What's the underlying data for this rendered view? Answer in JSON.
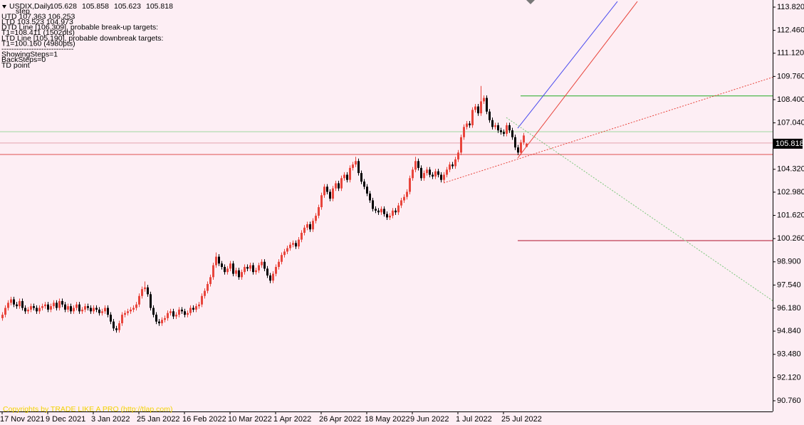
{
  "chart_data": {
    "type": "candlestick",
    "title": "USDIX,Daily",
    "info_lines": [
      "step",
      "UTD  107.363  106.253",
      "LTD  103.523  104.973",
      "DTD  Line [106.309], probable break-up targets:",
      "T1=108.411 (1502pts)",
      "LTD  Line [105.190], probable downbreak targets:",
      "T1=100.160 (4980pts)",
      "-----------------------------",
      "ShowingSteps=1",
      "BackSteps=0",
      "TD point"
    ],
    "footer": "Copyrights by TRADE LIKE A PRO (http://tlap.com)",
    "background": "#fdeef4",
    "up_color": "#e8453c",
    "down_color": "#000000",
    "categories": [
      "17 Nov 2021",
      null,
      null,
      null,
      null,
      null,
      null,
      null,
      null,
      null,
      null,
      null,
      null,
      null,
      null,
      null,
      "9 Dec 2021",
      null,
      null,
      null,
      null,
      null,
      null,
      null,
      null,
      null,
      null,
      null,
      null,
      null,
      null,
      null,
      "3 Jan 2022",
      null,
      null,
      null,
      null,
      null,
      null,
      null,
      null,
      null,
      null,
      null,
      null,
      null,
      null,
      null,
      "25 Jan 2022",
      null,
      null,
      null,
      null,
      null,
      null,
      null,
      null,
      null,
      null,
      null,
      null,
      null,
      null,
      null,
      "16 Feb 2022",
      null,
      null,
      null,
      null,
      null,
      null,
      null,
      null,
      null,
      null,
      null,
      null,
      null,
      null,
      null,
      "10 Mar 2022",
      null,
      null,
      null,
      null,
      null,
      null,
      null,
      null,
      null,
      null,
      null,
      null,
      null,
      null,
      null,
      "1 Apr 2022",
      null,
      null,
      null,
      null,
      null,
      null,
      null,
      null,
      null,
      null,
      null,
      null,
      null,
      null,
      null,
      "26 Apr 2022",
      null,
      null,
      null,
      null,
      null,
      null,
      null,
      null,
      null,
      null,
      null,
      null,
      null,
      null,
      null,
      "18 May 2022",
      null,
      null,
      null,
      null,
      null,
      null,
      null,
      null,
      null,
      null,
      null,
      null,
      null,
      null,
      null,
      "9 Jun 2022",
      null,
      null,
      null,
      null,
      null,
      null,
      null,
      null,
      null,
      null,
      null,
      null,
      null,
      null,
      null,
      "1 Jul 2022",
      null,
      null,
      null,
      null,
      null,
      null,
      null,
      null,
      null,
      null,
      null,
      null,
      null,
      null,
      null,
      "25 Jul 2022",
      null,
      null,
      null,
      null,
      null,
      null,
      null,
      null
    ],
    "candles": [
      [
        95.6,
        95.95,
        95.45,
        95.8
      ],
      [
        95.8,
        96.35,
        95.65,
        96.2
      ],
      [
        96.2,
        96.65,
        96.05,
        96.5
      ],
      [
        96.5,
        96.85,
        96.35,
        96.7
      ],
      [
        96.7,
        96.85,
        96.25,
        96.4
      ],
      [
        96.4,
        96.55,
        96.15,
        96.3
      ],
      [
        96.3,
        96.75,
        96.15,
        96.6
      ],
      [
        96.6,
        96.75,
        96.05,
        96.2
      ],
      [
        96.2,
        96.35,
        95.85,
        96.0
      ],
      [
        96.0,
        96.25,
        95.85,
        96.1
      ],
      [
        96.1,
        96.45,
        95.95,
        96.3
      ],
      [
        96.3,
        96.45,
        96.05,
        96.2
      ],
      [
        96.2,
        96.35,
        95.85,
        96.0
      ],
      [
        96.0,
        96.35,
        95.85,
        96.2
      ],
      [
        96.2,
        96.45,
        96.05,
        96.3
      ],
      [
        96.3,
        96.55,
        96.15,
        96.4
      ],
      [
        96.4,
        96.55,
        95.95,
        96.1
      ],
      [
        96.1,
        96.45,
        95.95,
        96.3
      ],
      [
        96.3,
        96.65,
        96.15,
        96.5
      ],
      [
        96.5,
        96.65,
        96.05,
        96.2
      ],
      [
        96.2,
        96.75,
        96.05,
        96.6
      ],
      [
        96.6,
        96.75,
        96.25,
        96.4
      ],
      [
        96.4,
        96.55,
        95.95,
        96.1
      ],
      [
        96.1,
        96.45,
        95.95,
        96.3
      ],
      [
        96.3,
        96.45,
        95.85,
        96.0
      ],
      [
        96.0,
        96.35,
        95.85,
        96.2
      ],
      [
        96.2,
        96.55,
        96.05,
        96.4
      ],
      [
        96.4,
        96.55,
        95.85,
        96.0
      ],
      [
        96.0,
        96.25,
        95.85,
        96.1
      ],
      [
        96.1,
        96.45,
        95.95,
        96.3
      ],
      [
        96.3,
        96.45,
        96.05,
        96.2
      ],
      [
        96.2,
        96.35,
        95.85,
        96.0
      ],
      [
        96.0,
        96.35,
        95.85,
        96.2
      ],
      [
        96.2,
        96.35,
        95.95,
        96.1
      ],
      [
        96.1,
        96.25,
        95.75,
        95.9
      ],
      [
        95.9,
        96.15,
        95.75,
        96.0
      ],
      [
        96.0,
        96.35,
        95.85,
        96.2
      ],
      [
        96.2,
        96.35,
        95.65,
        95.8
      ],
      [
        95.8,
        95.95,
        95.25,
        95.4
      ],
      [
        95.4,
        95.55,
        94.85,
        95.0
      ],
      [
        95.0,
        95.15,
        94.75,
        94.9
      ],
      [
        94.9,
        95.45,
        94.75,
        95.3
      ],
      [
        95.3,
        95.95,
        95.15,
        95.8
      ],
      [
        95.8,
        96.05,
        95.65,
        95.9
      ],
      [
        95.9,
        96.15,
        95.75,
        96.0
      ],
      [
        96.0,
        96.25,
        95.85,
        96.1
      ],
      [
        96.1,
        96.35,
        95.95,
        96.2
      ],
      [
        96.2,
        96.55,
        96.05,
        96.4
      ],
      [
        96.4,
        97.05,
        96.25,
        96.9
      ],
      [
        96.9,
        97.45,
        96.75,
        97.3
      ],
      [
        97.3,
        97.75,
        97.15,
        97.4
      ],
      [
        97.4,
        97.55,
        96.85,
        97.0
      ],
      [
        97.0,
        97.15,
        96.05,
        96.2
      ],
      [
        96.2,
        96.35,
        95.65,
        95.8
      ],
      [
        95.8,
        95.95,
        95.25,
        95.4
      ],
      [
        95.4,
        95.55,
        95.15,
        95.3
      ],
      [
        95.3,
        95.65,
        95.15,
        95.5
      ],
      [
        95.5,
        95.75,
        95.35,
        95.6
      ],
      [
        95.6,
        96.05,
        95.45,
        95.9
      ],
      [
        95.9,
        96.15,
        95.75,
        96.0
      ],
      [
        96.0,
        96.15,
        95.55,
        95.7
      ],
      [
        95.7,
        95.95,
        95.55,
        95.8
      ],
      [
        95.8,
        96.25,
        95.65,
        96.1
      ],
      [
        96.1,
        96.25,
        95.85,
        96.0
      ],
      [
        96.0,
        96.15,
        95.65,
        95.8
      ],
      [
        95.8,
        96.05,
        95.65,
        95.9
      ],
      [
        95.9,
        96.35,
        95.75,
        96.2
      ],
      [
        96.2,
        96.35,
        95.95,
        96.1
      ],
      [
        96.1,
        96.45,
        95.95,
        96.3
      ],
      [
        96.3,
        96.55,
        96.15,
        96.4
      ],
      [
        96.4,
        97.05,
        96.25,
        96.9
      ],
      [
        96.9,
        97.35,
        96.75,
        97.2
      ],
      [
        97.2,
        97.75,
        97.05,
        97.6
      ],
      [
        97.6,
        98.15,
        97.45,
        98.0
      ],
      [
        98.0,
        98.85,
        97.85,
        98.7
      ],
      [
        98.7,
        99.45,
        98.55,
        99.2
      ],
      [
        99.2,
        99.35,
        98.65,
        98.8
      ],
      [
        98.8,
        98.95,
        98.45,
        98.6
      ],
      [
        98.6,
        98.75,
        98.15,
        98.3
      ],
      [
        98.3,
        98.65,
        98.15,
        98.5
      ],
      [
        98.5,
        98.95,
        98.35,
        98.8
      ],
      [
        98.8,
        98.95,
        98.05,
        98.2
      ],
      [
        98.2,
        98.55,
        98.05,
        98.4
      ],
      [
        98.4,
        98.55,
        97.85,
        98.0
      ],
      [
        98.0,
        98.45,
        97.85,
        98.3
      ],
      [
        98.3,
        98.75,
        98.15,
        98.6
      ],
      [
        98.6,
        98.75,
        98.35,
        98.5
      ],
      [
        98.5,
        98.85,
        98.35,
        98.7
      ],
      [
        98.7,
        98.85,
        98.15,
        98.3
      ],
      [
        98.3,
        98.55,
        98.15,
        98.4
      ],
      [
        98.4,
        98.85,
        98.25,
        98.7
      ],
      [
        98.7,
        99.05,
        98.55,
        98.9
      ],
      [
        98.9,
        99.05,
        98.35,
        98.5
      ],
      [
        98.5,
        98.65,
        97.95,
        98.1
      ],
      [
        98.1,
        98.25,
        97.65,
        97.8
      ],
      [
        97.8,
        98.35,
        97.65,
        98.2
      ],
      [
        98.2,
        98.75,
        98.05,
        98.6
      ],
      [
        98.6,
        99.05,
        98.45,
        98.9
      ],
      [
        98.9,
        99.45,
        98.75,
        99.3
      ],
      [
        99.3,
        99.65,
        99.15,
        99.5
      ],
      [
        99.5,
        99.85,
        99.35,
        99.7
      ],
      [
        99.7,
        100.05,
        99.55,
        99.9
      ],
      [
        99.9,
        100.15,
        99.75,
        100.0
      ],
      [
        100.0,
        100.15,
        99.65,
        99.8
      ],
      [
        99.8,
        100.35,
        99.65,
        100.2
      ],
      [
        100.2,
        100.75,
        100.05,
        100.6
      ],
      [
        100.6,
        101.05,
        100.45,
        100.9
      ],
      [
        100.9,
        101.25,
        100.75,
        101.1
      ],
      [
        101.1,
        101.25,
        100.65,
        100.8
      ],
      [
        100.8,
        101.45,
        100.65,
        101.3
      ],
      [
        101.3,
        101.75,
        101.15,
        101.6
      ],
      [
        101.6,
        102.25,
        101.45,
        102.1
      ],
      [
        102.1,
        102.95,
        101.95,
        102.8
      ],
      [
        102.8,
        103.45,
        102.65,
        103.3
      ],
      [
        103.3,
        103.45,
        102.85,
        103.0
      ],
      [
        103.0,
        103.15,
        102.45,
        102.6
      ],
      [
        102.6,
        103.35,
        102.45,
        103.2
      ],
      [
        103.2,
        103.65,
        103.05,
        103.5
      ],
      [
        103.5,
        103.65,
        103.05,
        103.2
      ],
      [
        103.2,
        103.95,
        103.05,
        103.8
      ],
      [
        103.8,
        104.15,
        103.65,
        104.0
      ],
      [
        104.0,
        104.15,
        103.55,
        103.7
      ],
      [
        103.7,
        104.55,
        103.55,
        104.4
      ],
      [
        104.4,
        104.75,
        104.25,
        104.6
      ],
      [
        104.6,
        105.05,
        104.45,
        104.8
      ],
      [
        104.8,
        104.95,
        103.95,
        104.1
      ],
      [
        104.1,
        104.25,
        103.45,
        103.6
      ],
      [
        103.6,
        103.75,
        103.15,
        103.3
      ],
      [
        103.3,
        103.45,
        102.75,
        102.9
      ],
      [
        102.9,
        103.05,
        102.35,
        102.5
      ],
      [
        102.5,
        102.65,
        101.85,
        102.0
      ],
      [
        102.0,
        102.15,
        101.75,
        101.9
      ],
      [
        101.9,
        102.05,
        101.65,
        101.8
      ],
      [
        101.8,
        102.15,
        101.65,
        102.0
      ],
      [
        102.0,
        102.15,
        101.55,
        101.7
      ],
      [
        101.7,
        101.85,
        101.35,
        101.5
      ],
      [
        101.5,
        101.75,
        101.35,
        101.6
      ],
      [
        101.6,
        102.05,
        101.45,
        101.9
      ],
      [
        101.9,
        102.05,
        101.65,
        101.8
      ],
      [
        101.8,
        102.35,
        101.65,
        102.2
      ],
      [
        102.2,
        102.65,
        102.05,
        102.5
      ],
      [
        102.5,
        102.85,
        102.35,
        102.7
      ],
      [
        102.7,
        103.15,
        102.55,
        103.0
      ],
      [
        103.0,
        103.95,
        102.85,
        103.8
      ],
      [
        103.8,
        104.45,
        103.65,
        104.3
      ],
      [
        104.3,
        105.05,
        104.15,
        104.8
      ],
      [
        104.8,
        104.95,
        104.25,
        104.4
      ],
      [
        104.4,
        104.55,
        103.65,
        103.8
      ],
      [
        103.8,
        104.25,
        103.65,
        104.1
      ],
      [
        104.1,
        104.45,
        103.95,
        104.3
      ],
      [
        104.3,
        104.45,
        103.85,
        104.0
      ],
      [
        104.0,
        104.15,
        103.75,
        103.9
      ],
      [
        103.9,
        104.35,
        103.75,
        104.2
      ],
      [
        104.2,
        104.35,
        103.85,
        104.0
      ],
      [
        104.0,
        104.15,
        103.55,
        103.7
      ],
      [
        103.7,
        104.15,
        103.55,
        104.0
      ],
      [
        104.0,
        104.45,
        103.85,
        104.3
      ],
      [
        104.3,
        104.75,
        104.15,
        104.6
      ],
      [
        104.6,
        104.75,
        104.35,
        104.5
      ],
      [
        104.5,
        105.05,
        104.35,
        104.9
      ],
      [
        104.9,
        105.45,
        104.75,
        105.3
      ],
      [
        105.3,
        106.35,
        105.15,
        106.2
      ],
      [
        106.2,
        106.95,
        106.05,
        106.8
      ],
      [
        106.8,
        107.15,
        106.65,
        107.0
      ],
      [
        107.0,
        107.15,
        106.75,
        106.9
      ],
      [
        106.9,
        107.95,
        106.75,
        107.8
      ],
      [
        107.8,
        108.15,
        107.65,
        108.0
      ],
      [
        108.0,
        108.15,
        107.45,
        107.6
      ],
      [
        107.6,
        109.2,
        107.45,
        108.3
      ],
      [
        108.3,
        108.65,
        108.15,
        108.5
      ],
      [
        108.5,
        108.65,
        107.55,
        107.7
      ],
      [
        107.7,
        107.85,
        107.05,
        107.2
      ],
      [
        107.2,
        107.35,
        106.65,
        106.8
      ],
      [
        106.8,
        107.05,
        106.65,
        106.9
      ],
      [
        106.9,
        107.05,
        106.45,
        106.6
      ],
      [
        106.6,
        106.75,
        106.35,
        106.5
      ],
      [
        106.5,
        106.65,
        106.25,
        106.4
      ],
      [
        106.4,
        107.05,
        106.25,
        106.9
      ],
      [
        106.9,
        107.05,
        106.45,
        106.6
      ],
      [
        106.6,
        106.75,
        106.05,
        106.2
      ],
      [
        106.2,
        106.35,
        105.45,
        105.6
      ],
      [
        105.6,
        105.75,
        105.15,
        105.3
      ],
      [
        105.3,
        106.05,
        105.15,
        105.9
      ],
      [
        105.9,
        106.45,
        105.75,
        106.3
      ],
      [
        105.628,
        105.858,
        105.623,
        105.818
      ]
    ],
    "ylim": [
      90.133,
      114.237
    ],
    "yticks": [
      {
        "value": 113.82,
        "label": "113.820"
      },
      {
        "value": 112.46,
        "label": "112.460"
      },
      {
        "value": 111.12,
        "label": "111.120"
      },
      {
        "value": 109.76,
        "label": "109.760"
      },
      {
        "value": 108.4,
        "label": "108.400"
      },
      {
        "value": 107.04,
        "label": "107.040"
      },
      {
        "value": 104.32,
        "label": "104.320"
      },
      {
        "value": 102.98,
        "label": "102.980"
      },
      {
        "value": 101.62,
        "label": "101.620"
      },
      {
        "value": 100.26,
        "label": "100.260"
      },
      {
        "value": 98.9,
        "label": "98.900"
      },
      {
        "value": 97.54,
        "label": "97.540"
      },
      {
        "value": 96.18,
        "label": "96.180"
      },
      {
        "value": 94.84,
        "label": "94.840"
      },
      {
        "value": 93.48,
        "label": "93.480"
      },
      {
        "value": 92.12,
        "label": "92.120"
      },
      {
        "value": 90.76,
        "label": "90.760"
      }
    ],
    "levels": [
      {
        "value": 108.62,
        "color": "#22aa22",
        "start": 182
      },
      {
        "value": 106.52,
        "color": "#9fd89f"
      },
      {
        "value": 105.86,
        "color": "#e6a3ae"
      },
      {
        "value": 105.19,
        "color": "#e05050"
      },
      {
        "value": 100.14,
        "color": "#b0102a",
        "start": 181
      }
    ],
    "trend_lines": [
      {
        "from": [
          155,
          103.52
        ],
        "to": [
          274,
          109.9
        ],
        "color": "#e8453c",
        "dashed": true
      },
      {
        "from": [
          181,
          104.98
        ],
        "to": [
          223,
          114.15
        ],
        "color": "#e8453c",
        "dashed": false
      },
      {
        "from": [
          181,
          106.73
        ],
        "to": [
          216,
          114.15
        ],
        "color": "#4a4aee",
        "dashed": false
      },
      {
        "from": [
          177,
          107.35
        ],
        "to": [
          274,
          96.22
        ],
        "color": "#7cc77c",
        "dashed": true
      }
    ]
  }
}
